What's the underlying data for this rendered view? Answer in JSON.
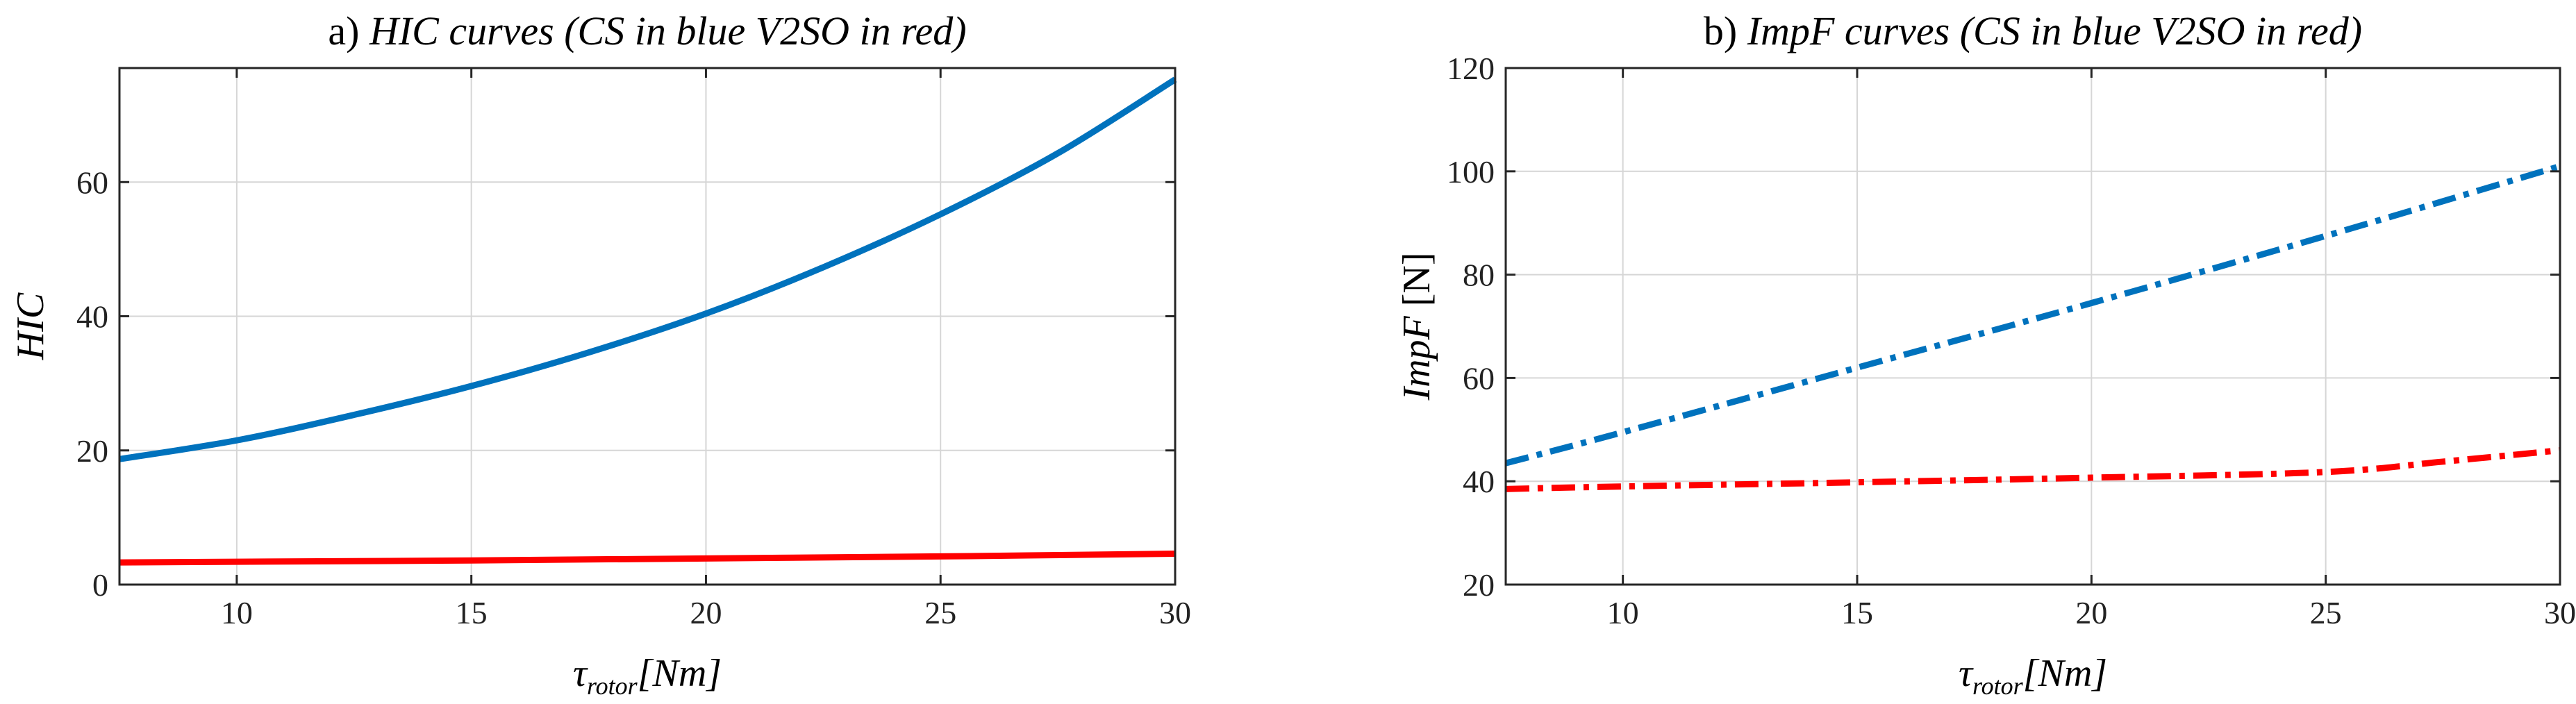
{
  "chart_data": [
    {
      "type": "line",
      "title": "a) HIC curves (CS in blue V2SO in red)",
      "title_parts": {
        "prefix": "a) ",
        "italic": "HIC curves (CS in blue V2SO in red)"
      },
      "xlabel_main": "τ",
      "xlabel_sub": "rotor",
      "xlabel_unit": "[Nm]",
      "ylabel_italic": "HIC",
      "ylabel_unit": "",
      "xlim": [
        7.5,
        30
      ],
      "ylim": [
        0,
        77
      ],
      "xticks": [
        10,
        15,
        20,
        25,
        30
      ],
      "yticks": [
        0,
        20,
        40,
        60
      ],
      "grid": true,
      "series": [
        {
          "name": "CS",
          "color": "#0072BD",
          "style": "solid",
          "x": [
            7.5,
            10,
            12.5,
            15,
            17.5,
            20,
            22.5,
            25,
            27.5,
            30
          ],
          "y": [
            18.7,
            21.5,
            25.3,
            29.6,
            34.6,
            40.4,
            47.3,
            55.2,
            64.3,
            75.3
          ]
        },
        {
          "name": "V2SO",
          "color": "#FF0000",
          "style": "solid",
          "x": [
            7.5,
            10,
            15,
            20,
            25,
            30
          ],
          "y": [
            3.3,
            3.4,
            3.6,
            3.9,
            4.2,
            4.6
          ]
        }
      ]
    },
    {
      "type": "line",
      "title": "b) ImpF curves (CS in blue V2SO in red)",
      "title_parts": {
        "prefix": "b) ",
        "italic": "ImpF curves (CS in blue V2SO in red)"
      },
      "xlabel_main": "τ",
      "xlabel_sub": "rotor",
      "xlabel_unit": "[Nm]",
      "ylabel_italic": "ImpF",
      "ylabel_unit": " [N]",
      "xlim": [
        7.5,
        30
      ],
      "ylim": [
        20,
        120
      ],
      "xticks": [
        10,
        15,
        20,
        25,
        30
      ],
      "yticks": [
        20,
        40,
        60,
        80,
        100,
        120
      ],
      "grid": true,
      "series": [
        {
          "name": "CS",
          "color": "#0072BD",
          "style": "dashdot",
          "x": [
            7.5,
            10,
            15,
            20,
            25,
            30
          ],
          "y": [
            43.5,
            49.5,
            62.0,
            74.5,
            87.5,
            101.0
          ]
        },
        {
          "name": "V2SO",
          "color": "#FF0000",
          "style": "dashdot",
          "x": [
            7.5,
            10,
            15,
            20,
            25,
            27.5,
            30
          ],
          "y": [
            38.5,
            39.0,
            39.8,
            40.7,
            41.8,
            43.8,
            46.0
          ]
        }
      ]
    }
  ]
}
